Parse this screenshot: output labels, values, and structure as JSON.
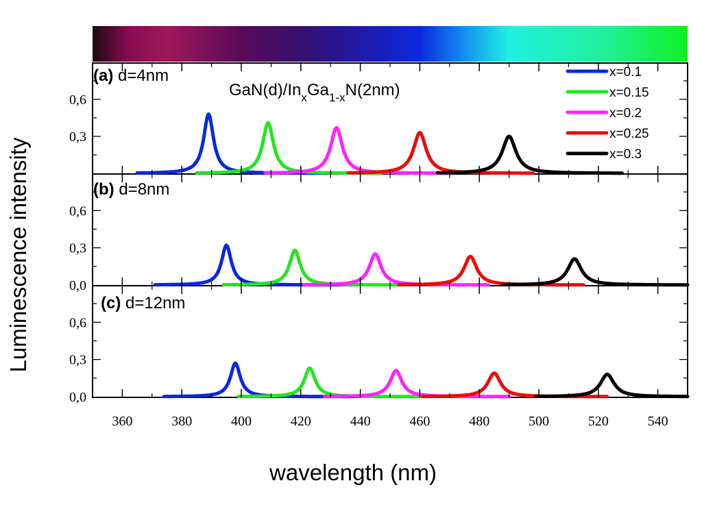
{
  "chart_data": {
    "type": "line",
    "title": "GaN(d)/In_xGa_1-xN(2nm)",
    "title_parts": {
      "main1": "GaN(d)/In",
      "sub1": "x",
      "main2": "Ga",
      "sub2": "1-x",
      "main3": "N(2nm)"
    },
    "xlabel": "wavelength (nm)",
    "ylabel": "Luminescence intensity",
    "xlim": [
      350,
      550
    ],
    "x_ticks": [
      360,
      380,
      400,
      420,
      440,
      460,
      480,
      500,
      520,
      540
    ],
    "x_tick_labels": [
      "360",
      "380",
      "400",
      "420",
      "440",
      "460",
      "480",
      "500",
      "520",
      "540"
    ],
    "ylim": [
      0,
      0.9
    ],
    "y_tick_labels": [
      "0,0",
      "0,3",
      "0,6"
    ],
    "y_tick_values": [
      0.0,
      0.3,
      0.6
    ],
    "color_bar": {
      "range_nm": [
        350,
        550
      ],
      "stops": [
        {
          "nm": 350,
          "color": "#1a0a12"
        },
        {
          "nm": 362,
          "color": "#8a0a52"
        },
        {
          "nm": 375,
          "color": "#a0185a"
        },
        {
          "nm": 400,
          "color": "#5a0a5a"
        },
        {
          "nm": 420,
          "color": "#35106e"
        },
        {
          "nm": 440,
          "color": "#2018a8"
        },
        {
          "nm": 460,
          "color": "#0a2ae0"
        },
        {
          "nm": 475,
          "color": "#1290f0"
        },
        {
          "nm": 490,
          "color": "#20f0e0"
        },
        {
          "nm": 520,
          "color": "#20f0a0"
        },
        {
          "nm": 550,
          "color": "#10f020"
        }
      ]
    },
    "legend": {
      "placement": "top-right",
      "entries": [
        {
          "name": "x=0.1",
          "color": "#0a28e0"
        },
        {
          "name": "x=0.15",
          "color": "#22e622"
        },
        {
          "name": "x=0.2",
          "color": "#ff22ff"
        },
        {
          "name": "x=0.25",
          "color": "#ee0a0a"
        },
        {
          "name": "x=0.3",
          "color": "#000000"
        }
      ]
    },
    "panels": [
      {
        "label_letter": "(a)",
        "label_text": "d=4nm",
        "series": [
          {
            "name": "x=0.1",
            "color": "#0a28e0",
            "peak_nm": 389,
            "peak": 0.48,
            "hwhm": 2.0
          },
          {
            "name": "x=0.15",
            "color": "#22e622",
            "peak_nm": 409,
            "peak": 0.41,
            "hwhm": 2.2
          },
          {
            "name": "x=0.2",
            "color": "#ff22ff",
            "peak_nm": 432,
            "peak": 0.37,
            "hwhm": 2.4
          },
          {
            "name": "x=0.25",
            "color": "#ee0a0a",
            "peak_nm": 460,
            "peak": 0.33,
            "hwhm": 2.6
          },
          {
            "name": "x=0.3",
            "color": "#000000",
            "peak_nm": 490,
            "peak": 0.3,
            "hwhm": 2.8
          }
        ]
      },
      {
        "label_letter": "(b)",
        "label_text": "d=8nm",
        "series": [
          {
            "name": "x=0.1",
            "color": "#0a28e0",
            "peak_nm": 395,
            "peak": 0.32,
            "hwhm": 2.0
          },
          {
            "name": "x=0.15",
            "color": "#22e622",
            "peak_nm": 418,
            "peak": 0.28,
            "hwhm": 2.2
          },
          {
            "name": "x=0.2",
            "color": "#ff22ff",
            "peak_nm": 445,
            "peak": 0.25,
            "hwhm": 2.4
          },
          {
            "name": "x=0.25",
            "color": "#ee0a0a",
            "peak_nm": 477,
            "peak": 0.23,
            "hwhm": 2.6
          },
          {
            "name": "x=0.3",
            "color": "#000000",
            "peak_nm": 512,
            "peak": 0.21,
            "hwhm": 2.8
          }
        ]
      },
      {
        "label_letter": "(c)",
        "label_text": "d=12nm",
        "series": [
          {
            "name": "x=0.1",
            "color": "#0a28e0",
            "peak_nm": 398,
            "peak": 0.27,
            "hwhm": 2.0
          },
          {
            "name": "x=0.15",
            "color": "#22e622",
            "peak_nm": 423,
            "peak": 0.23,
            "hwhm": 2.2
          },
          {
            "name": "x=0.2",
            "color": "#ff22ff",
            "peak_nm": 452,
            "peak": 0.21,
            "hwhm": 2.4
          },
          {
            "name": "x=0.25",
            "color": "#ee0a0a",
            "peak_nm": 485,
            "peak": 0.19,
            "hwhm": 2.6
          },
          {
            "name": "x=0.3",
            "color": "#000000",
            "peak_nm": 523,
            "peak": 0.18,
            "hwhm": 2.8
          }
        ]
      }
    ]
  }
}
